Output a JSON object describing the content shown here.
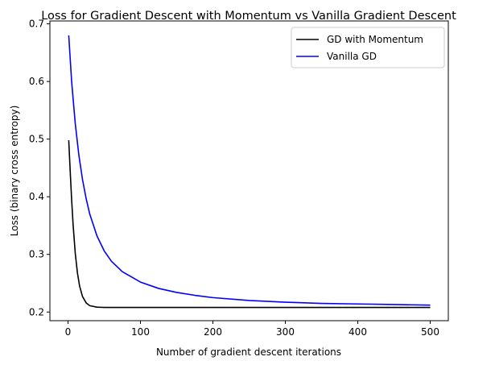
{
  "chart_data": {
    "type": "line",
    "title": "Loss for Gradient Descent with Momentum vs Vanilla Gradient Descent",
    "xlabel": "Number of gradient descent iterations",
    "ylabel": "Loss (binary cross entropy)",
    "xlim": [
      -25,
      525
    ],
    "ylim": [
      0.185,
      0.705
    ],
    "x_ticks": [
      0,
      100,
      200,
      300,
      400,
      500
    ],
    "y_ticks": [
      0.2,
      0.3,
      0.4,
      0.5,
      0.6,
      0.7
    ],
    "y_tick_labels": [
      "0.2",
      "0.3",
      "0.4",
      "0.5",
      "0.6",
      "0.7"
    ],
    "grid": false,
    "legend_position": "top-right",
    "series": [
      {
        "name": "GD with Momentum",
        "color": "#000000",
        "x": [
          1,
          3,
          5,
          7,
          10,
          13,
          16,
          20,
          25,
          30,
          40,
          50,
          75,
          100,
          200,
          300,
          400,
          500
        ],
        "y": [
          0.498,
          0.445,
          0.395,
          0.352,
          0.302,
          0.268,
          0.245,
          0.227,
          0.216,
          0.211,
          0.2085,
          0.208,
          0.208,
          0.208,
          0.208,
          0.208,
          0.208,
          0.208
        ]
      },
      {
        "name": "Vanilla GD",
        "color": "#0000ff",
        "x": [
          1,
          5,
          10,
          15,
          20,
          25,
          30,
          40,
          50,
          60,
          75,
          100,
          125,
          150,
          175,
          200,
          250,
          300,
          350,
          400,
          450,
          500
        ],
        "y": [
          0.68,
          0.6,
          0.527,
          0.472,
          0.43,
          0.397,
          0.37,
          0.332,
          0.306,
          0.288,
          0.27,
          0.252,
          0.241,
          0.234,
          0.229,
          0.225,
          0.22,
          0.217,
          0.215,
          0.214,
          0.213,
          0.212
        ]
      }
    ]
  }
}
